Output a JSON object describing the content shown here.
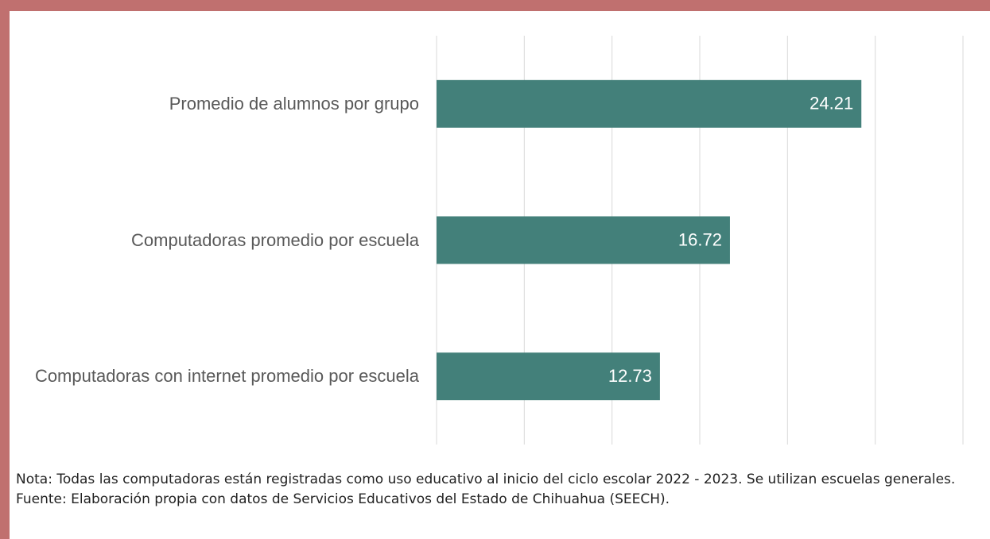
{
  "chart_data": {
    "type": "bar",
    "orientation": "horizontal",
    "categories": [
      "Promedio de alumnos por grupo",
      "Computadoras promedio por escuela",
      "Computadoras con internet promedio por escuela"
    ],
    "values": [
      24.21,
      16.72,
      12.73
    ],
    "color": "#43807a",
    "xlim": [
      0,
      30
    ],
    "xticks": [
      0,
      5,
      10,
      15,
      20,
      25,
      30
    ],
    "grid": true,
    "note": "Nota: Todas las computadoras están registradas como uso educativo al inicio del ciclo escolar 2022 - 2023. Se utilizan escuelas generales.",
    "source": "Fuente: Elaboración propia con datos de Servicios Educativos del Estado de Chihuahua (SEECH)."
  }
}
